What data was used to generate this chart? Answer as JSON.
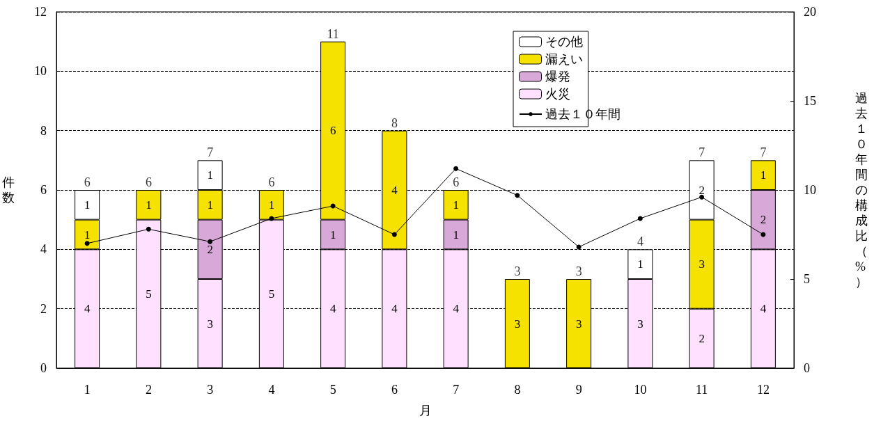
{
  "chart_data": {
    "type": "bar",
    "stacked": true,
    "xlabel": "月",
    "ylabel": "件数",
    "y2label": "過去１０年間の構成比（%）",
    "categories": [
      "1",
      "2",
      "3",
      "4",
      "5",
      "6",
      "7",
      "8",
      "9",
      "10",
      "11",
      "12"
    ],
    "ylim": [
      0,
      12
    ],
    "yticks": [
      0,
      2,
      4,
      6,
      8,
      10,
      12
    ],
    "y2lim": [
      0,
      20
    ],
    "y2ticks": [
      0,
      5,
      10,
      15,
      20
    ],
    "grid": "y",
    "legend": "top right",
    "series": [
      {
        "name": "火災",
        "color": "#ffe0ff",
        "values": [
          4,
          5,
          3,
          5,
          4,
          4,
          4,
          0,
          0,
          3,
          2,
          4
        ],
        "value_labels": [
          "4",
          "5",
          "3",
          "5",
          "4",
          "4",
          "4",
          null,
          null,
          "3",
          "2",
          "4"
        ]
      },
      {
        "name": "爆発",
        "color": "#d8a8d8",
        "values": [
          0,
          0,
          2,
          0,
          1,
          0,
          1,
          0,
          0,
          0,
          0,
          2
        ],
        "value_labels": [
          null,
          null,
          "2",
          null,
          "1",
          null,
          "1",
          null,
          null,
          null,
          null,
          "2"
        ]
      },
      {
        "name": "漏えい",
        "color": "#f5e200",
        "values": [
          1,
          1,
          1,
          1,
          6,
          4,
          1,
          3,
          3,
          0,
          3,
          1
        ],
        "value_labels": [
          "1",
          "1",
          "1",
          "1",
          "6",
          "4",
          "1",
          "3",
          "3",
          null,
          "3",
          "1"
        ]
      },
      {
        "name": "その他",
        "color": "#ffffff",
        "values": [
          1,
          0,
          1,
          0,
          0,
          0,
          0,
          0,
          0,
          1,
          2,
          0
        ],
        "value_labels": [
          "1",
          null,
          "1",
          null,
          null,
          null,
          null,
          null,
          null,
          "1",
          "2",
          null
        ]
      },
      {
        "name": "過去１０年間",
        "type": "line",
        "axis": "y2",
        "color": "#000000",
        "marker": "circle",
        "line_style": "solid",
        "values": [
          7.0,
          7.8,
          7.1,
          8.4,
          9.1,
          7.5,
          11.2,
          9.7,
          6.8,
          8.4,
          9.6,
          7.5
        ]
      }
    ],
    "totals": [
      "6",
      "6",
      "7",
      "6",
      "11",
      "8",
      "6",
      "3",
      "3",
      "4",
      "7",
      "7"
    ]
  }
}
